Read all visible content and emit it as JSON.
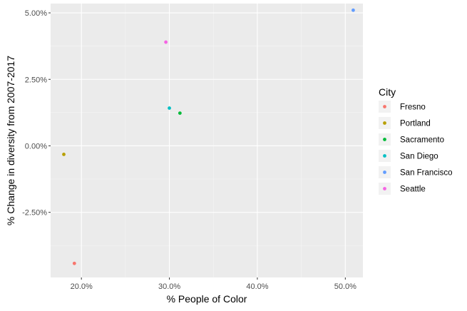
{
  "chart_data": {
    "type": "scatter",
    "xlabel": "% People of Color",
    "ylabel": "% Change in diversity from 2007-2017",
    "xlim": [
      0.165,
      0.52
    ],
    "ylim": [
      -0.0495,
      0.0535
    ],
    "x_ticks": [
      {
        "value": 0.2,
        "label": "20.0%"
      },
      {
        "value": 0.3,
        "label": "30.0%"
      },
      {
        "value": 0.4,
        "label": "40.0%"
      },
      {
        "value": 0.5,
        "label": "50.0%"
      }
    ],
    "y_ticks": [
      {
        "value": -0.025,
        "label": "-2.50%"
      },
      {
        "value": 0.0,
        "label": "0.00%"
      },
      {
        "value": 0.025,
        "label": "2.50%"
      },
      {
        "value": 0.05,
        "label": "5.00%"
      }
    ],
    "grid": true,
    "legend": {
      "title": "City",
      "position": "right"
    },
    "series": [
      {
        "name": "Fresno",
        "color": "#F8766D",
        "points": [
          {
            "x": 0.192,
            "y": -0.0442
          }
        ]
      },
      {
        "name": "Portland",
        "color": "#B79F00",
        "points": [
          {
            "x": 0.18,
            "y": -0.0032
          }
        ]
      },
      {
        "name": "Sacramento",
        "color": "#00BA38",
        "points": [
          {
            "x": 0.312,
            "y": 0.0123
          }
        ]
      },
      {
        "name": "San Diego",
        "color": "#00BFC4",
        "points": [
          {
            "x": 0.3,
            "y": 0.0142
          }
        ]
      },
      {
        "name": "San Francisco",
        "color": "#619CFF",
        "points": [
          {
            "x": 0.509,
            "y": 0.051
          }
        ]
      },
      {
        "name": "Seattle",
        "color": "#F564E3",
        "points": [
          {
            "x": 0.296,
            "y": 0.039
          }
        ]
      }
    ]
  }
}
